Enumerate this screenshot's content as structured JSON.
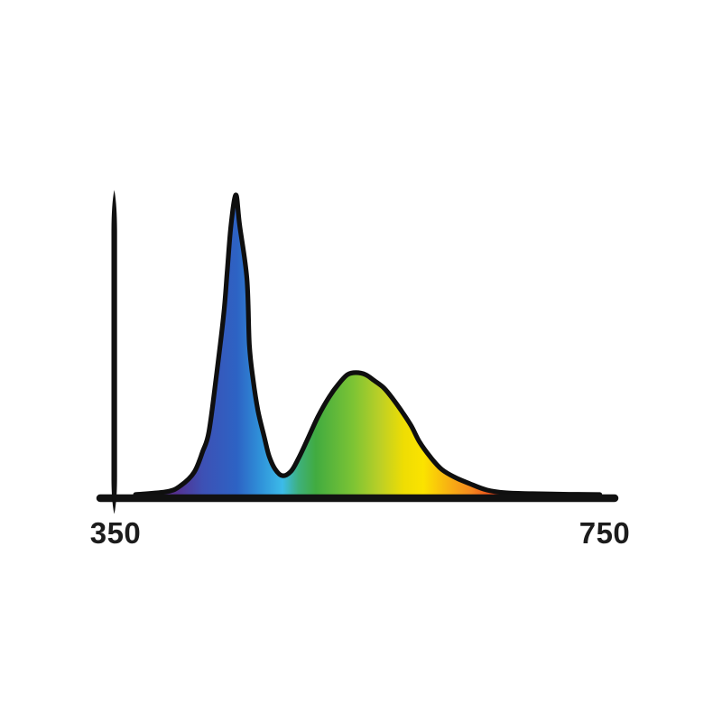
{
  "page": {
    "background_color": "#ffffff",
    "description": "Light spectrum chart: relative spectral power distribution of an LED lamp with a narrow blue peak near 450 nm and a broad phosphor hump near 550 nm, filled with a rainbow wavelength gradient over a 350-750 nm axis."
  },
  "chart_data": {
    "type": "area",
    "title": "",
    "xlabel": "",
    "ylabel": "",
    "xlim": [
      350,
      750
    ],
    "ylim": [
      0,
      1.05
    ],
    "grid": false,
    "legend": "none",
    "line_color": "#0f0f0f",
    "axis_color": "#111111",
    "ticks": [
      {
        "label": "350",
        "wavelength": 350
      },
      {
        "label": "750",
        "wavelength": 750
      }
    ],
    "series": [
      {
        "name": "relative spectral power",
        "x": [
          367,
          393,
          404,
          415,
          422,
          427,
          433,
          439,
          442,
          445,
          449,
          452,
          458,
          460,
          463,
          467,
          472,
          476,
          481,
          487,
          494,
          500,
          507,
          516,
          525,
          533,
          540,
          547,
          555,
          562,
          570,
          577,
          584,
          592,
          599,
          608,
          617,
          628,
          640,
          654,
          669,
          691,
          721,
          746
        ],
        "values": [
          0,
          0.01,
          0.03,
          0.075,
          0.145,
          0.21,
          0.395,
          0.6,
          0.75,
          0.9,
          1.0,
          0.9,
          0.72,
          0.5,
          0.385,
          0.28,
          0.195,
          0.13,
          0.085,
          0.063,
          0.078,
          0.12,
          0.18,
          0.26,
          0.325,
          0.37,
          0.4,
          0.407,
          0.4,
          0.38,
          0.355,
          0.32,
          0.28,
          0.23,
          0.175,
          0.124,
          0.084,
          0.057,
          0.036,
          0.015,
          0.006,
          0.003,
          0.001,
          0.0
        ]
      }
    ],
    "peaks": [
      {
        "wavelength": 449,
        "relative_power": 1.0,
        "note": "narrow blue peak"
      },
      {
        "wavelength": 547,
        "relative_power": 0.41,
        "note": "broad phosphor hump"
      }
    ],
    "gradient_stops": [
      {
        "wavelength": 400,
        "color": "#55308f"
      },
      {
        "wavelength": 422,
        "color": "#3d51b5"
      },
      {
        "wavelength": 450,
        "color": "#2d63c4"
      },
      {
        "wavelength": 468,
        "color": "#2f8fd8"
      },
      {
        "wavelength": 487,
        "color": "#3cbbe9"
      },
      {
        "wavelength": 500,
        "color": "#3eb07c"
      },
      {
        "wavelength": 514,
        "color": "#41ab40"
      },
      {
        "wavelength": 545,
        "color": "#7dc434"
      },
      {
        "wavelength": 566,
        "color": "#bacf27"
      },
      {
        "wavelength": 586,
        "color": "#eedd04"
      },
      {
        "wavelength": 602,
        "color": "#fbe300"
      },
      {
        "wavelength": 622,
        "color": "#f8b312"
      },
      {
        "wavelength": 641,
        "color": "#f5881e"
      },
      {
        "wavelength": 660,
        "color": "#e94419"
      },
      {
        "wavelength": 681,
        "color": "#da2517"
      },
      {
        "wavelength": 725,
        "color": "#b32015"
      }
    ]
  }
}
